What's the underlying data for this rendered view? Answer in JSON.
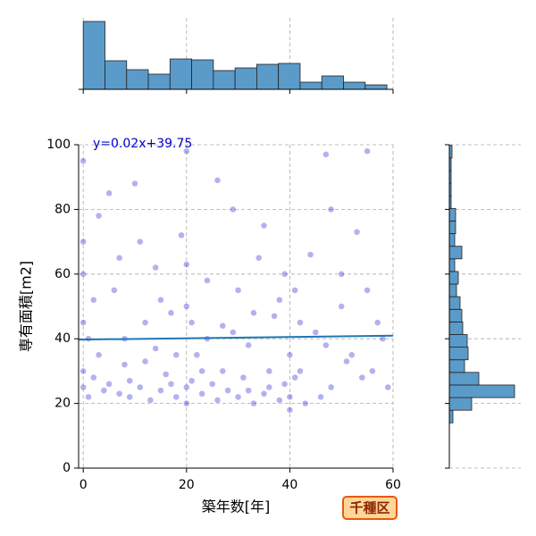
{
  "chart_data": [
    {
      "type": "scatter",
      "xlabel": "築年数[年]",
      "ylabel": "専有面積[m2]",
      "badge": "千種区",
      "color": "#0000cc",
      "grid": true,
      "xlim": [
        -0.9,
        60
      ],
      "ylim": [
        0,
        100
      ],
      "xticks": [
        0,
        20,
        40,
        60
      ],
      "yticks": [
        0,
        20,
        40,
        60,
        80,
        100
      ],
      "x": [
        0,
        0,
        0,
        0,
        0,
        0,
        1,
        2,
        3,
        4,
        5,
        6,
        7,
        8,
        9,
        10,
        11,
        12,
        13,
        14,
        15,
        16,
        17,
        18,
        19,
        20,
        20,
        20,
        20,
        21,
        22,
        23,
        24,
        25,
        26,
        27,
        28,
        29,
        30,
        31,
        32,
        33,
        34,
        35,
        36,
        37,
        38,
        39,
        40,
        40,
        40,
        41,
        42,
        43,
        45,
        47,
        48,
        50,
        52,
        54,
        55,
        57,
        59,
        2,
        5,
        8,
        11,
        14,
        17,
        20,
        23,
        26,
        29,
        32,
        35,
        38,
        41,
        44,
        47,
        50,
        53,
        56,
        58,
        3,
        7,
        12,
        18,
        24,
        30,
        36,
        42,
        48,
        55,
        1,
        9,
        15,
        21,
        27,
        33,
        39,
        46,
        51
      ],
      "y": [
        25,
        45,
        60,
        95,
        30,
        70,
        22,
        28,
        78,
        24,
        26,
        55,
        23,
        40,
        27,
        88,
        25,
        33,
        21,
        62,
        24,
        29,
        48,
        22,
        72,
        25,
        20,
        50,
        98,
        27,
        35,
        23,
        58,
        26,
        21,
        44,
        24,
        80,
        22,
        28,
        38,
        20,
        65,
        23,
        25,
        47,
        21,
        26,
        22,
        18,
        35,
        55,
        30,
        20,
        42,
        97,
        25,
        60,
        35,
        28,
        98,
        45,
        25,
        52,
        85,
        32,
        70,
        37,
        26,
        63,
        30,
        89,
        42,
        24,
        75,
        52,
        28,
        66,
        38,
        50,
        73,
        30,
        40,
        35,
        65,
        45,
        35,
        40,
        55,
        30,
        45,
        80,
        55,
        40,
        22,
        52,
        45,
        30,
        48,
        60,
        22,
        33
      ],
      "regression": {
        "label": "y=0.02x+39.75",
        "color": "#1f77b4",
        "x": [
          -0.9,
          60
        ],
        "y": [
          39.73,
          40.95
        ]
      }
    },
    {
      "type": "histogram",
      "color": "#5b9bc9",
      "xlim": [
        -0.9,
        60
      ],
      "ylim": [
        0,
        80
      ],
      "xticks": [
        0,
        20,
        40,
        60
      ],
      "bins": [
        0,
        4.2,
        8.4,
        12.6,
        16.8,
        21,
        25.2,
        29.4,
        33.6,
        37.8,
        42,
        46.2,
        50.4,
        54.6,
        58.8
      ],
      "values": [
        76,
        32,
        22,
        17,
        34,
        33,
        21,
        24,
        28,
        29,
        8,
        15,
        8,
        5
      ]
    },
    {
      "type": "histogram",
      "orientation": "horizontal",
      "color": "#5b9bc9",
      "xlim": [
        0,
        80
      ],
      "ylim": [
        0,
        100
      ],
      "yticks": [
        0,
        20,
        40,
        60,
        80,
        100
      ],
      "bins": [
        14,
        17.9,
        21.8,
        25.7,
        29.6,
        33.5,
        37.4,
        41.3,
        45.2,
        49.1,
        53,
        56.9,
        60.8,
        64.7,
        68.6,
        72.5,
        76.4,
        80.3,
        84.2,
        88.1,
        92,
        95.9,
        99.8
      ],
      "values": [
        4,
        25,
        73,
        33,
        17,
        21,
        20,
        15,
        14,
        12,
        8,
        10,
        6,
        14,
        6,
        7,
        7,
        2,
        2,
        2,
        2,
        3
      ]
    }
  ]
}
